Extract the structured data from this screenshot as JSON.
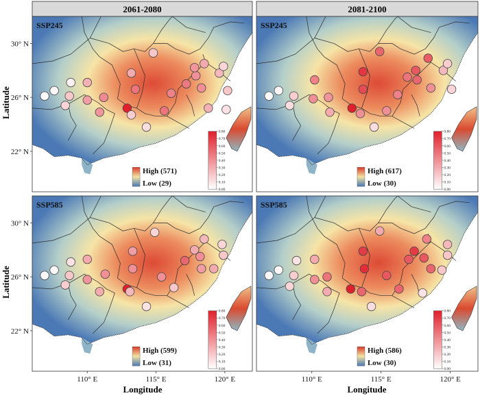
{
  "figure": {
    "xlabel": "Longitude",
    "ylabel": "Latitude",
    "x_ticks": [
      {
        "v": 110,
        "label": "110° E"
      },
      {
        "v": 115,
        "label": "115° E"
      },
      {
        "v": 120,
        "label": "120° E"
      }
    ],
    "y_ticks": [
      {
        "v": 30,
        "label": "30° N"
      },
      {
        "v": 26,
        "label": "26° N"
      },
      {
        "v": 22,
        "label": "22° N"
      }
    ],
    "columns": [
      "2061-2080",
      "2081-2100"
    ],
    "rows": [
      "SSP245",
      "SSP585"
    ]
  },
  "colors": {
    "strip_bg": "#d9d9d9",
    "low": "#4a78b5",
    "mid": "#f2e3a1",
    "high": "#d93a2b",
    "point_low": "#ffffff",
    "point_high": "#e0202c"
  },
  "chart_data": [
    {
      "type": "scatter",
      "period": "2061-2080",
      "scenario": "SSP245",
      "raster_legend": {
        "high_label": "High (571)",
        "low_label": "Low (29)",
        "high": 571,
        "low": 29
      },
      "point_legend": {
        "ticks": [
          "0.80",
          "0.70",
          "0.60",
          "0.50",
          "0.40",
          "0.30",
          "0.20",
          "0.10",
          "0.00"
        ],
        "range": [
          0,
          0.8
        ]
      },
      "xlim": [
        106,
        122
      ],
      "ylim": [
        19,
        32
      ],
      "points": [
        {
          "lon": 106.9,
          "lat": 26.1,
          "v": 0.02
        },
        {
          "lon": 107.6,
          "lat": 26.5,
          "v": 0.03
        },
        {
          "lon": 108.8,
          "lat": 27.1,
          "v": 0.05
        },
        {
          "lon": 108.7,
          "lat": 26.1,
          "v": 0.2
        },
        {
          "lon": 108.4,
          "lat": 25.4,
          "v": 0.15
        },
        {
          "lon": 110.0,
          "lat": 27.1,
          "v": 0.28
        },
        {
          "lon": 110.0,
          "lat": 25.8,
          "v": 0.35
        },
        {
          "lon": 111.2,
          "lat": 26.0,
          "v": 0.42
        },
        {
          "lon": 110.9,
          "lat": 24.9,
          "v": 0.38
        },
        {
          "lon": 112.9,
          "lat": 25.2,
          "v": 0.8
        },
        {
          "lon": 113.2,
          "lat": 27.8,
          "v": 0.3
        },
        {
          "lon": 113.5,
          "lat": 26.6,
          "v": 0.5
        },
        {
          "lon": 113.2,
          "lat": 24.7,
          "v": 0.18
        },
        {
          "lon": 114.3,
          "lat": 23.8,
          "v": 0.12
        },
        {
          "lon": 114.8,
          "lat": 29.3,
          "v": 0.2
        },
        {
          "lon": 115.6,
          "lat": 25.0,
          "v": 0.5
        },
        {
          "lon": 116.1,
          "lat": 26.3,
          "v": 0.45
        },
        {
          "lon": 117.2,
          "lat": 27.0,
          "v": 0.48
        },
        {
          "lon": 117.9,
          "lat": 27.6,
          "v": 0.4
        },
        {
          "lon": 118.3,
          "lat": 26.7,
          "v": 0.4
        },
        {
          "lon": 117.8,
          "lat": 28.2,
          "v": 0.38
        },
        {
          "lon": 118.5,
          "lat": 28.5,
          "v": 0.3
        },
        {
          "lon": 118.8,
          "lat": 25.2,
          "v": 0.28
        },
        {
          "lon": 119.6,
          "lat": 27.8,
          "v": 0.25
        },
        {
          "lon": 119.9,
          "lat": 28.3,
          "v": 0.15
        },
        {
          "lon": 120.2,
          "lat": 26.5,
          "v": 0.2
        },
        {
          "lon": 120.1,
          "lat": 25.1,
          "v": 0.1
        }
      ]
    },
    {
      "type": "scatter",
      "period": "2081-2100",
      "scenario": "SSP245",
      "raster_legend": {
        "high_label": "High (617)",
        "low_label": "Low (30)",
        "high": 617,
        "low": 30
      },
      "point_legend": {
        "ticks": [
          "0.80",
          "0.70",
          "0.60",
          "0.50",
          "0.40",
          "0.30",
          "0.20",
          "0.10",
          "0.00"
        ],
        "range": [
          0,
          0.8
        ]
      },
      "xlim": [
        106,
        122
      ],
      "ylim": [
        19,
        32
      ],
      "points": [
        {
          "lon": 106.9,
          "lat": 26.1,
          "v": 0.02
        },
        {
          "lon": 107.6,
          "lat": 26.5,
          "v": 0.03
        },
        {
          "lon": 108.4,
          "lat": 25.4,
          "v": 0.12
        },
        {
          "lon": 108.7,
          "lat": 26.1,
          "v": 0.18
        },
        {
          "lon": 110.2,
          "lat": 27.3,
          "v": 0.45
        },
        {
          "lon": 110.1,
          "lat": 25.9,
          "v": 0.4
        },
        {
          "lon": 111.2,
          "lat": 26.0,
          "v": 0.38
        },
        {
          "lon": 111.3,
          "lat": 24.9,
          "v": 0.3
        },
        {
          "lon": 112.9,
          "lat": 25.2,
          "v": 0.8
        },
        {
          "lon": 113.7,
          "lat": 27.9,
          "v": 0.72
        },
        {
          "lon": 113.7,
          "lat": 26.6,
          "v": 0.65
        },
        {
          "lon": 113.5,
          "lat": 24.8,
          "v": 0.4
        },
        {
          "lon": 114.5,
          "lat": 23.8,
          "v": 0.12
        },
        {
          "lon": 114.9,
          "lat": 29.4,
          "v": 0.55
        },
        {
          "lon": 115.4,
          "lat": 25.0,
          "v": 0.4
        },
        {
          "lon": 116.2,
          "lat": 26.2,
          "v": 0.45
        },
        {
          "lon": 116.9,
          "lat": 27.5,
          "v": 0.5
        },
        {
          "lon": 117.5,
          "lat": 28.0,
          "v": 0.6
        },
        {
          "lon": 117.6,
          "lat": 27.3,
          "v": 0.55
        },
        {
          "lon": 118.4,
          "lat": 28.9,
          "v": 0.58
        },
        {
          "lon": 118.6,
          "lat": 26.7,
          "v": 0.4
        },
        {
          "lon": 119.5,
          "lat": 28.0,
          "v": 0.25
        },
        {
          "lon": 119.8,
          "lat": 28.5,
          "v": 0.18
        },
        {
          "lon": 120.1,
          "lat": 26.6,
          "v": 0.15
        }
      ]
    },
    {
      "type": "scatter",
      "period": "2061-2080",
      "scenario": "SSP585",
      "raster_legend": {
        "high_label": "High (599)",
        "low_label": "Low (31)",
        "high": 599,
        "low": 31
      },
      "point_legend": {
        "ticks": [
          "0.80",
          "0.70",
          "0.60",
          "0.50",
          "0.40",
          "0.30",
          "0.20",
          "0.10",
          "0.00"
        ],
        "range": [
          0,
          0.8
        ]
      },
      "xlim": [
        106,
        122
      ],
      "ylim": [
        19,
        32
      ],
      "points": [
        {
          "lon": 106.9,
          "lat": 26.1,
          "v": 0.02
        },
        {
          "lon": 107.6,
          "lat": 26.5,
          "v": 0.03
        },
        {
          "lon": 108.8,
          "lat": 27.1,
          "v": 0.1
        },
        {
          "lon": 108.7,
          "lat": 26.1,
          "v": 0.2
        },
        {
          "lon": 108.4,
          "lat": 25.4,
          "v": 0.18
        },
        {
          "lon": 110.0,
          "lat": 27.3,
          "v": 0.3
        },
        {
          "lon": 110.0,
          "lat": 25.8,
          "v": 0.38
        },
        {
          "lon": 111.3,
          "lat": 26.2,
          "v": 0.4
        },
        {
          "lon": 110.9,
          "lat": 24.9,
          "v": 0.3
        },
        {
          "lon": 112.9,
          "lat": 25.1,
          "v": 0.8
        },
        {
          "lon": 113.3,
          "lat": 27.9,
          "v": 0.35
        },
        {
          "lon": 113.3,
          "lat": 26.6,
          "v": 0.4
        },
        {
          "lon": 113.1,
          "lat": 24.9,
          "v": 0.25
        },
        {
          "lon": 114.3,
          "lat": 23.8,
          "v": 0.1
        },
        {
          "lon": 114.9,
          "lat": 29.3,
          "v": 0.15
        },
        {
          "lon": 115.4,
          "lat": 26.0,
          "v": 0.4
        },
        {
          "lon": 116.3,
          "lat": 25.2,
          "v": 0.2
        },
        {
          "lon": 117.1,
          "lat": 27.2,
          "v": 0.55
        },
        {
          "lon": 117.8,
          "lat": 28.0,
          "v": 0.3
        },
        {
          "lon": 118.2,
          "lat": 27.5,
          "v": 0.4
        },
        {
          "lon": 118.3,
          "lat": 26.6,
          "v": 0.35
        },
        {
          "lon": 118.5,
          "lat": 28.8,
          "v": 0.25
        },
        {
          "lon": 119.2,
          "lat": 26.6,
          "v": 0.3
        },
        {
          "lon": 119.8,
          "lat": 28.4,
          "v": 0.15
        },
        {
          "lon": 119.9,
          "lat": 27.6,
          "v": 0.2
        }
      ]
    },
    {
      "type": "scatter",
      "period": "2081-2100",
      "scenario": "SSP585",
      "raster_legend": {
        "high_label": "High (586)",
        "low_label": "Low (30)",
        "high": 586,
        "low": 30
      },
      "point_legend": {
        "ticks": [
          "0.80",
          "0.70",
          "0.60",
          "0.50",
          "0.40",
          "0.30",
          "0.20",
          "0.10",
          "0.00"
        ],
        "range": [
          0,
          0.8
        ]
      },
      "xlim": [
        106,
        122
      ],
      "ylim": [
        19,
        32
      ],
      "points": [
        {
          "lon": 106.9,
          "lat": 26.1,
          "v": 0.02
        },
        {
          "lon": 107.6,
          "lat": 26.5,
          "v": 0.03
        },
        {
          "lon": 108.9,
          "lat": 27.2,
          "v": 0.1
        },
        {
          "lon": 108.7,
          "lat": 26.1,
          "v": 0.18
        },
        {
          "lon": 108.4,
          "lat": 25.3,
          "v": 0.15
        },
        {
          "lon": 110.2,
          "lat": 27.3,
          "v": 0.3
        },
        {
          "lon": 110.2,
          "lat": 25.8,
          "v": 0.4
        },
        {
          "lon": 111.1,
          "lat": 26.0,
          "v": 0.5
        },
        {
          "lon": 111.1,
          "lat": 24.9,
          "v": 0.3
        },
        {
          "lon": 112.8,
          "lat": 25.1,
          "v": 0.85
        },
        {
          "lon": 113.7,
          "lat": 27.9,
          "v": 0.7
        },
        {
          "lon": 113.8,
          "lat": 26.6,
          "v": 0.75
        },
        {
          "lon": 113.6,
          "lat": 24.9,
          "v": 0.55
        },
        {
          "lon": 114.3,
          "lat": 23.8,
          "v": 0.12
        },
        {
          "lon": 114.9,
          "lat": 29.4,
          "v": 0.3
        },
        {
          "lon": 115.4,
          "lat": 26.1,
          "v": 0.6
        },
        {
          "lon": 116.3,
          "lat": 25.1,
          "v": 0.55
        },
        {
          "lon": 117.0,
          "lat": 27.3,
          "v": 0.6
        },
        {
          "lon": 117.4,
          "lat": 27.9,
          "v": 0.7
        },
        {
          "lon": 118.1,
          "lat": 27.4,
          "v": 0.6
        },
        {
          "lon": 118.3,
          "lat": 28.8,
          "v": 0.45
        },
        {
          "lon": 118.6,
          "lat": 26.6,
          "v": 0.55
        },
        {
          "lon": 119.4,
          "lat": 26.5,
          "v": 0.2
        },
        {
          "lon": 119.8,
          "lat": 28.4,
          "v": 0.25
        },
        {
          "lon": 119.8,
          "lat": 27.6,
          "v": 0.2
        },
        {
          "lon": 118.0,
          "lat": 24.8,
          "v": 0.1
        }
      ]
    }
  ]
}
